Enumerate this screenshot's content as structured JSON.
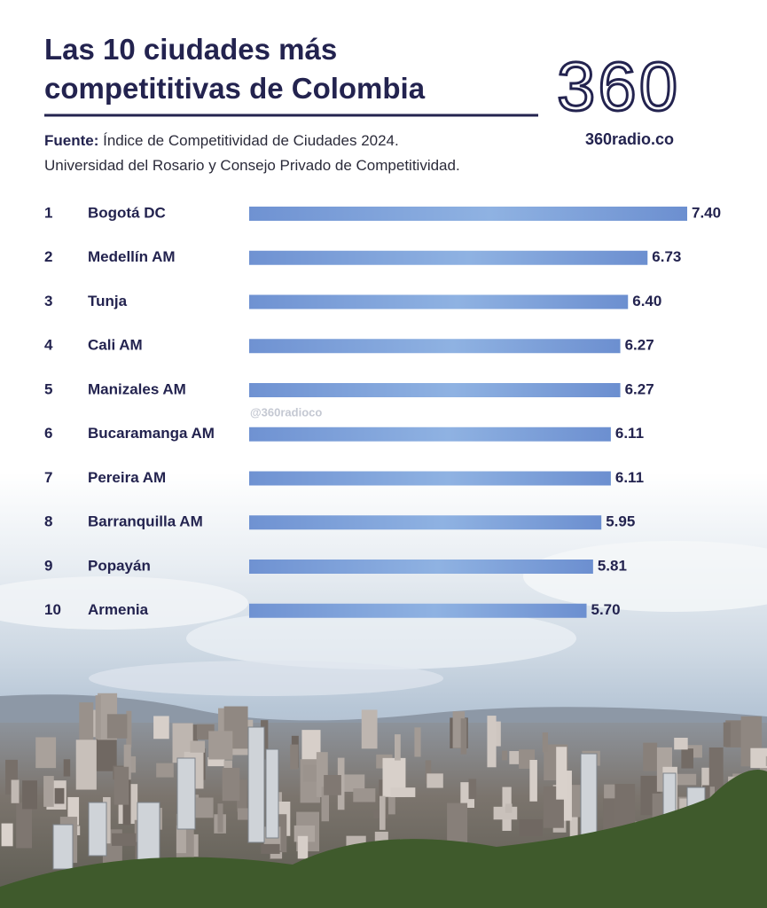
{
  "chart_data": {
    "type": "bar",
    "title_lines": [
      "Las 10 ciudades más",
      "competititivas de Colombia"
    ],
    "brand": "360",
    "website": "360radio.co",
    "source_label": "Fuente:",
    "source_lines": [
      "Índice de Competitividad de Ciudades 2024.",
      "Universidad del Rosario y Consejo Privado de Competitividad."
    ],
    "watermark": "@360radioco",
    "ranks": [
      1,
      2,
      3,
      4,
      5,
      6,
      7,
      8,
      9,
      10
    ],
    "categories": [
      "Bogotá DC",
      "Medellín AM",
      "Tunja",
      "Cali AM",
      "Manizales AM",
      "Bucaramanga AM",
      "Pereira AM",
      "Barranquilla AM",
      "Popayán",
      "Armenia"
    ],
    "values": [
      7.4,
      6.73,
      6.4,
      6.27,
      6.27,
      6.11,
      6.11,
      5.95,
      5.81,
      5.7
    ],
    "value_labels": [
      "7.40",
      "6.73",
      "6.40",
      "6.27",
      "6.27",
      "6.11",
      "6.11",
      "5.95",
      "5.81",
      "5.70"
    ],
    "color": "#6f92d2"
  }
}
